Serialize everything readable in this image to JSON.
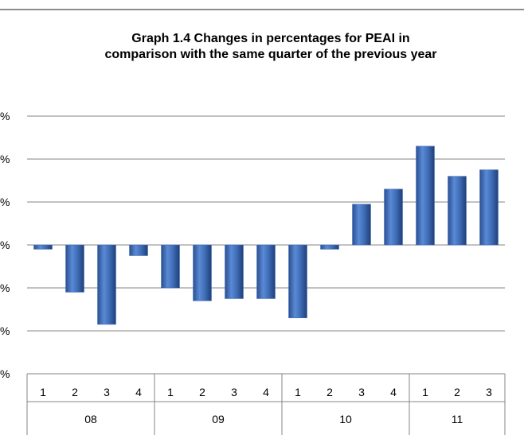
{
  "chart_data": {
    "type": "bar",
    "title": [
      "Graph 1.4 Changes in percentages for PEAI in",
      "comparison with the same quarter of the previous year"
    ],
    "y_tick_labels": [
      "%",
      "%",
      "%",
      "%",
      "%",
      "%",
      "%"
    ],
    "ylim": [
      -3,
      3
    ],
    "grid": true,
    "categories": [
      "1",
      "2",
      "3",
      "4",
      "1",
      "2",
      "3",
      "4",
      "1",
      "2",
      "3",
      "4",
      "1",
      "2",
      "3"
    ],
    "groups": [
      {
        "label": "08",
        "count": 4
      },
      {
        "label": "09",
        "count": 4
      },
      {
        "label": "10",
        "count": 4
      },
      {
        "label": "11",
        "count": 3
      }
    ],
    "values": [
      -0.1,
      -1.1,
      -1.85,
      -0.25,
      -1.0,
      -1.3,
      -1.25,
      -1.25,
      -1.7,
      -0.1,
      0.95,
      1.3,
      2.3,
      1.6,
      1.75
    ],
    "bar_color": "#3E6CB5"
  }
}
